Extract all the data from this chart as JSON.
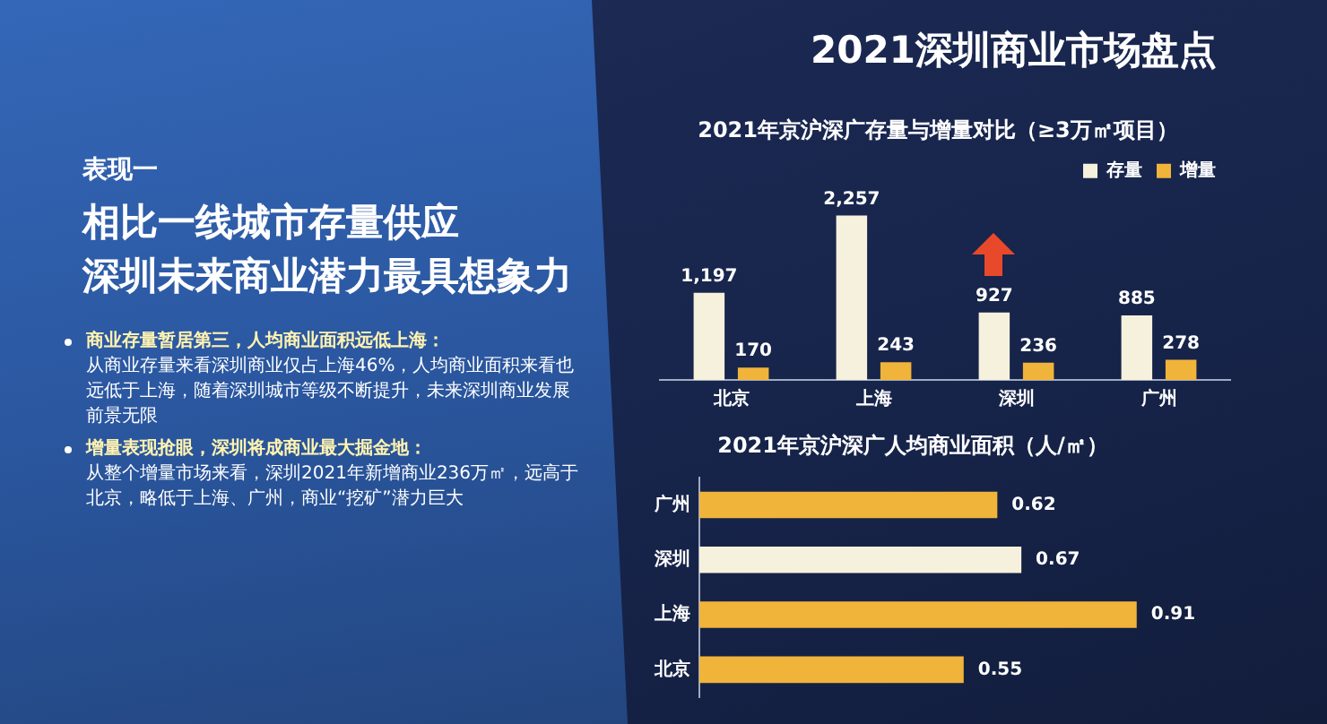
{
  "chart_data": [
    {
      "type": "other",
      "title": "2021深圳商业市场盘点",
      "subtitle": "表现一",
      "annotations": [
        "相比一线城市存量供应",
        "深圳未来商业潜力最具想象力",
        "商业存量暂居第三，人均商业面积远低上海：",
        "从商业存量来看深圳商业仅占上海46%，人均商业面积来看也远低于上海，随着深圳城市等级不断提升，未来深圳商业发展前景无限",
        "增量表现抢眼，深圳将成商业最大掘金地：",
        "从整个增量市场来看，深圳2021年新增商业236万㎡，远高于北京，略低于上海、广州，商业“挖矿”潜力巨大"
      ]
    },
    {
      "type": "bar",
      "title": "2021年京沪深广存量与增量对比（≥3万㎡项目）",
      "categories": [
        "北京",
        "上海",
        "深圳",
        "广州"
      ],
      "series": [
        {
          "name": "存量",
          "color": "#f5f1dc",
          "values": [
            1197,
            2257,
            927,
            885
          ],
          "value_labels": [
            "1,197",
            "2,257",
            "927",
            "885"
          ]
        },
        {
          "name": "增量",
          "color": "#f0b43a",
          "values": [
            170,
            243,
            236,
            278
          ],
          "value_labels": [
            "170",
            "243",
            "236",
            "278"
          ]
        }
      ],
      "tick_labels": "x",
      "grid": false,
      "legend": "top right"
    },
    {
      "type": "bar",
      "orientation": "horizontal",
      "title": "2021年京沪深广人均商业面积（人/㎡）",
      "categories": [
        "广州",
        "深圳",
        "上海",
        "北京"
      ],
      "values": [
        0.62,
        0.67,
        0.91,
        0.55
      ],
      "colors": [
        "#f0b43a",
        "#f5f1dc",
        "#f0b43a",
        "#f0b43a"
      ],
      "tick_labels": "y",
      "grid": false,
      "data_labels": true
    }
  ]
}
